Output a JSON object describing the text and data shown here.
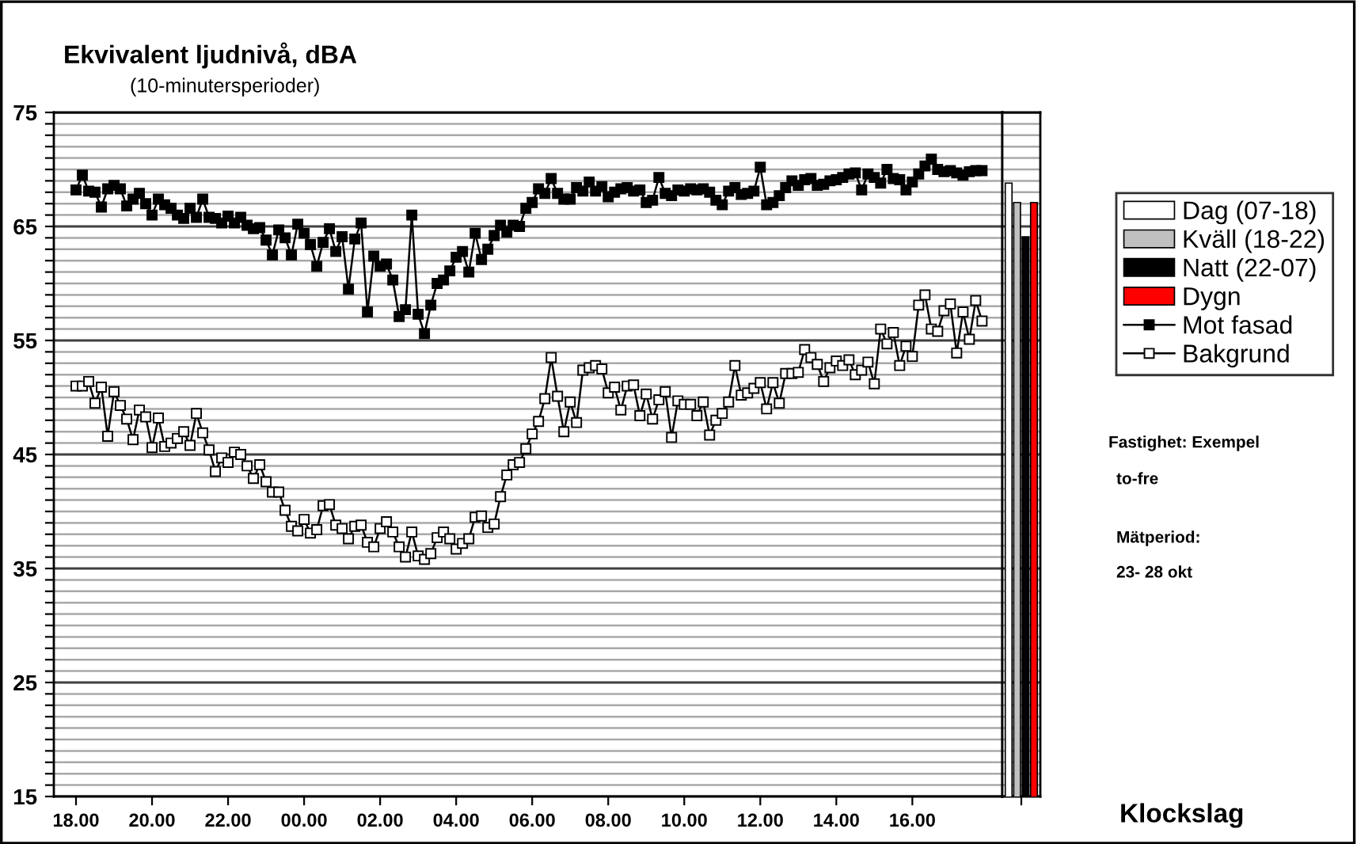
{
  "chart_data": [
    {
      "type": "line",
      "title": "Ekvivalent ljudnivå, dBA",
      "subtitle": "(10-minutersperioder)",
      "xlabel": "Klockslag",
      "categories": [
        "18.00",
        null,
        null,
        null,
        null,
        null,
        null,
        null,
        null,
        null,
        null,
        null,
        "20.00",
        null,
        null,
        null,
        null,
        null,
        null,
        null,
        null,
        null,
        null,
        null,
        "22.00",
        null,
        null,
        null,
        null,
        null,
        null,
        null,
        null,
        null,
        null,
        null,
        "00.00",
        null,
        null,
        null,
        null,
        null,
        null,
        null,
        null,
        null,
        null,
        null,
        "02.00",
        null,
        null,
        null,
        null,
        null,
        null,
        null,
        null,
        null,
        null,
        null,
        "04.00",
        null,
        null,
        null,
        null,
        null,
        null,
        null,
        null,
        null,
        null,
        null,
        "06.00",
        null,
        null,
        null,
        null,
        null,
        null,
        null,
        null,
        null,
        null,
        null,
        "08.00",
        null,
        null,
        null,
        null,
        null,
        null,
        null,
        null,
        null,
        null,
        null,
        "10.00",
        null,
        null,
        null,
        null,
        null,
        null,
        null,
        null,
        null,
        null,
        null,
        "12.00",
        null,
        null,
        null,
        null,
        null,
        null,
        null,
        null,
        null,
        null,
        null,
        "14.00",
        null,
        null,
        null,
        null,
        null,
        null,
        null,
        null,
        null,
        null,
        null,
        "16.00",
        null,
        null,
        null,
        null,
        null,
        null,
        null,
        null,
        null,
        null,
        null
      ],
      "series": [
        {
          "name": "Mot fasad",
          "color": "#000000",
          "values": [
            68.2,
            69.5,
            68.1,
            68.0,
            66.7,
            68.3,
            68.6,
            68.3,
            66.8,
            67.4,
            67.9,
            67.0,
            66.0,
            67.4,
            66.9,
            66.6,
            66.0,
            65.7,
            66.6,
            65.8,
            67.4,
            65.8,
            65.7,
            65.3,
            65.9,
            65.3,
            65.8,
            65.1,
            64.8,
            64.9,
            63.8,
            62.5,
            64.7,
            64.0,
            62.5,
            65.2,
            64.4,
            63.4,
            61.5,
            63.6,
            64.8,
            62.8,
            64.1,
            59.5,
            63.9,
            65.3,
            57.5,
            62.4,
            61.5,
            61.7,
            60.3,
            57.1,
            57.7,
            66.0,
            57.3,
            55.6,
            58.1,
            60.0,
            60.3,
            61.1,
            62.3,
            62.8,
            61.0,
            64.4,
            62.1,
            63.0,
            64.2,
            65.1,
            64.5,
            65.1,
            65.0,
            66.6,
            67.1,
            68.3,
            67.9,
            69.2,
            67.9,
            67.4,
            67.4,
            68.4,
            68.1,
            68.9,
            68.1,
            68.5,
            67.6,
            68.0,
            68.3,
            68.4,
            68.1,
            68.2,
            67.1,
            67.3,
            69.3,
            67.9,
            67.7,
            68.2,
            68.1,
            68.3,
            68.2,
            68.3,
            68.0,
            67.3,
            66.9,
            68.1,
            68.4,
            67.8,
            67.9,
            68.1,
            70.2,
            66.9,
            67.1,
            67.7,
            68.4,
            69.0,
            68.6,
            69.1,
            69.2,
            68.6,
            68.7,
            69.0,
            69.1,
            69.3,
            69.6,
            69.7,
            68.2,
            69.6,
            69.3,
            68.8,
            70.0,
            69.2,
            69.1,
            68.2,
            68.9,
            69.6,
            70.3,
            70.9,
            70.0,
            69.8,
            69.9,
            69.7,
            69.5,
            69.8,
            69.9,
            69.9
          ]
        },
        {
          "name": "Bakgrund",
          "color": "#ffffff",
          "values": [
            51.0,
            51.0,
            51.4,
            49.5,
            50.9,
            46.6,
            50.5,
            49.3,
            48.1,
            46.3,
            48.9,
            48.3,
            45.6,
            48.2,
            45.7,
            46.0,
            46.4,
            47.0,
            45.8,
            48.6,
            46.9,
            45.4,
            43.5,
            44.7,
            44.3,
            45.2,
            45.0,
            44.0,
            42.9,
            44.1,
            42.6,
            41.7,
            41.7,
            40.1,
            38.7,
            38.3,
            39.3,
            38.1,
            38.4,
            40.5,
            40.6,
            38.8,
            38.5,
            37.6,
            38.7,
            38.8,
            37.3,
            36.9,
            38.5,
            39.1,
            38.2,
            36.9,
            36.0,
            38.2,
            36.1,
            35.8,
            36.3,
            37.7,
            38.2,
            37.6,
            36.7,
            37.2,
            37.6,
            39.5,
            39.6,
            38.6,
            38.9,
            41.3,
            43.2,
            44.1,
            44.3,
            45.5,
            46.8,
            47.9,
            49.9,
            53.5,
            50.1,
            47.0,
            49.6,
            47.8,
            52.4,
            52.6,
            52.8,
            52.5,
            50.4,
            50.9,
            48.9,
            51.0,
            51.1,
            48.4,
            50.3,
            48.1,
            49.8,
            50.5,
            46.5,
            49.7,
            49.4,
            49.4,
            48.4,
            49.6,
            46.7,
            48.0,
            48.6,
            49.6,
            52.8,
            50.2,
            50.4,
            50.8,
            51.3,
            49.0,
            51.3,
            49.5,
            52.1,
            52.1,
            52.2,
            54.2,
            53.5,
            52.9,
            51.4,
            52.6,
            53.2,
            52.8,
            53.3,
            52.0,
            52.4,
            53.1,
            51.2,
            56.0,
            54.7,
            55.7,
            52.8,
            54.5,
            53.6,
            58.1,
            59.0,
            56.0,
            55.8,
            57.6,
            58.2,
            53.9,
            57.5,
            55.1,
            58.5,
            56.7
          ]
        }
      ],
      "ylim": [
        15,
        75
      ],
      "yticks": [
        15,
        {
          "value": 16,
          "label": null
        },
        {
          "value": 17,
          "label": null
        },
        {
          "value": 18,
          "label": null
        },
        {
          "value": 19,
          "label": null
        },
        {
          "value": 20,
          "label": null
        },
        {
          "value": 21,
          "label": null
        },
        {
          "value": 22,
          "label": null
        },
        {
          "value": 23,
          "label": null
        },
        {
          "value": 24,
          "label": null
        },
        25,
        {
          "value": 26,
          "label": null
        },
        {
          "value": 27,
          "label": null
        },
        {
          "value": 28,
          "label": null
        },
        {
          "value": 29,
          "label": null
        },
        {
          "value": 30,
          "label": null
        },
        {
          "value": 31,
          "label": null
        },
        {
          "value": 32,
          "label": null
        },
        {
          "value": 33,
          "label": null
        },
        {
          "value": 34,
          "label": null
        },
        35,
        {
          "value": 36,
          "label": null
        },
        {
          "value": 37,
          "label": null
        },
        {
          "value": 38,
          "label": null
        },
        {
          "value": 39,
          "label": null
        },
        {
          "value": 40,
          "label": null
        },
        {
          "value": 41,
          "label": null
        },
        {
          "value": 42,
          "label": null
        },
        {
          "value": 43,
          "label": null
        },
        {
          "value": 44,
          "label": null
        },
        45,
        {
          "value": 46,
          "label": null
        },
        {
          "value": 47,
          "label": null
        },
        {
          "value": 48,
          "label": null
        },
        {
          "value": 49,
          "label": null
        },
        {
          "value": 50,
          "label": null
        },
        {
          "value": 51,
          "label": null
        },
        {
          "value": 52,
          "label": null
        },
        {
          "value": 53,
          "label": null
        },
        {
          "value": 54,
          "label": null
        },
        55,
        {
          "value": 56,
          "label": null
        },
        {
          "value": 57,
          "label": null
        },
        {
          "value": 58,
          "label": null
        },
        {
          "value": 59,
          "label": null
        },
        {
          "value": 60,
          "label": null
        },
        {
          "value": 61,
          "label": null
        },
        {
          "value": 62,
          "label": null
        },
        {
          "value": 63,
          "label": null
        },
        {
          "value": 64,
          "label": null
        },
        65,
        {
          "value": 66,
          "label": null
        },
        {
          "value": 67,
          "label": null
        },
        {
          "value": 68,
          "label": null
        },
        {
          "value": 69,
          "label": null
        },
        {
          "value": 70,
          "label": null
        },
        {
          "value": 71,
          "label": null
        },
        {
          "value": 72,
          "label": null
        },
        {
          "value": 73,
          "label": null
        },
        {
          "value": 74,
          "label": null
        },
        75
      ],
      "grid": "y",
      "marker": "square",
      "line_style": "solid",
      "legend": "right"
    },
    {
      "type": "bar",
      "categories": [
        null
      ],
      "series": [
        {
          "name": "Dag (07-18)",
          "color": "#ffffff",
          "values": [
            68.8
          ]
        },
        {
          "name": "Kväll (18-22)",
          "color": "#c0c0c0",
          "values": [
            67.1
          ]
        },
        {
          "name": "Natt (22-07)",
          "color": "#000000",
          "values": [
            64.1
          ]
        },
        {
          "name": "Dygn",
          "color": "#ff0000",
          "values": [
            67.1
          ]
        }
      ],
      "ylim": [
        15,
        75
      ],
      "yticks": [
        15,
        {
          "value": 16,
          "label": null
        },
        {
          "value": 17,
          "label": null
        },
        {
          "value": 18,
          "label": null
        },
        {
          "value": 19,
          "label": null
        },
        {
          "value": 20,
          "label": null
        },
        {
          "value": 21,
          "label": null
        },
        {
          "value": 22,
          "label": null
        },
        {
          "value": 23,
          "label": null
        },
        {
          "value": 24,
          "label": null
        },
        25,
        {
          "value": 26,
          "label": null
        },
        {
          "value": 27,
          "label": null
        },
        {
          "value": 28,
          "label": null
        },
        {
          "value": 29,
          "label": null
        },
        {
          "value": 30,
          "label": null
        },
        {
          "value": 31,
          "label": null
        },
        {
          "value": 32,
          "label": null
        },
        {
          "value": 33,
          "label": null
        },
        {
          "value": 34,
          "label": null
        },
        35,
        {
          "value": 36,
          "label": null
        },
        {
          "value": 37,
          "label": null
        },
        {
          "value": 38,
          "label": null
        },
        {
          "value": 39,
          "label": null
        },
        {
          "value": 40,
          "label": null
        },
        {
          "value": 41,
          "label": null
        },
        {
          "value": 42,
          "label": null
        },
        {
          "value": 43,
          "label": null
        },
        {
          "value": 44,
          "label": null
        },
        45,
        {
          "value": 46,
          "label": null
        },
        {
          "value": 47,
          "label": null
        },
        {
          "value": 48,
          "label": null
        },
        {
          "value": 49,
          "label": null
        },
        {
          "value": 50,
          "label": null
        },
        {
          "value": 51,
          "label": null
        },
        {
          "value": 52,
          "label": null
        },
        {
          "value": 53,
          "label": null
        },
        {
          "value": 54,
          "label": null
        },
        55,
        {
          "value": 56,
          "label": null
        },
        {
          "value": 57,
          "label": null
        },
        {
          "value": 58,
          "label": null
        },
        {
          "value": 59,
          "label": null
        },
        {
          "value": 60,
          "label": null
        },
        {
          "value": 61,
          "label": null
        },
        {
          "value": 62,
          "label": null
        },
        {
          "value": 63,
          "label": null
        },
        {
          "value": 64,
          "label": null
        },
        65,
        {
          "value": 66,
          "label": null
        },
        {
          "value": 67,
          "label": null
        },
        {
          "value": 68,
          "label": null
        },
        {
          "value": 69,
          "label": null
        },
        {
          "value": 70,
          "label": null
        },
        {
          "value": 71,
          "label": null
        },
        {
          "value": 72,
          "label": null
        },
        {
          "value": 73,
          "label": null
        },
        {
          "value": 74,
          "label": null
        },
        75
      ],
      "grid": "y",
      "tick_labels": false,
      "legend": "right",
      "annotations": [
        "Fastighet: Exempel",
        "to-fre",
        "Mätperiod:",
        "23- 28 okt"
      ]
    }
  ]
}
